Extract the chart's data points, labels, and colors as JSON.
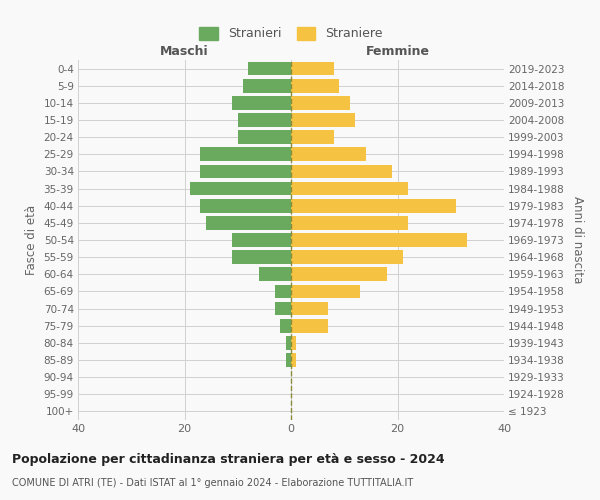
{
  "age_groups": [
    "100+",
    "95-99",
    "90-94",
    "85-89",
    "80-84",
    "75-79",
    "70-74",
    "65-69",
    "60-64",
    "55-59",
    "50-54",
    "45-49",
    "40-44",
    "35-39",
    "30-34",
    "25-29",
    "20-24",
    "15-19",
    "10-14",
    "5-9",
    "0-4"
  ],
  "birth_years": [
    "≤ 1923",
    "1924-1928",
    "1929-1933",
    "1934-1938",
    "1939-1943",
    "1944-1948",
    "1949-1953",
    "1954-1958",
    "1959-1963",
    "1964-1968",
    "1969-1973",
    "1974-1978",
    "1979-1983",
    "1984-1988",
    "1989-1993",
    "1994-1998",
    "1999-2003",
    "2004-2008",
    "2009-2013",
    "2014-2018",
    "2019-2023"
  ],
  "maschi": [
    0,
    0,
    0,
    1,
    1,
    2,
    3,
    3,
    6,
    11,
    11,
    16,
    17,
    19,
    17,
    17,
    10,
    10,
    11,
    9,
    8
  ],
  "femmine": [
    0,
    0,
    0,
    1,
    1,
    7,
    7,
    13,
    18,
    21,
    33,
    22,
    31,
    22,
    19,
    14,
    8,
    12,
    11,
    9,
    8
  ],
  "maschi_color": "#6aaa5e",
  "femmine_color": "#f5c242",
  "bg_color": "#f9f9f9",
  "grid_color": "#d0d0d0",
  "title": "Popolazione per cittadinanza straniera per età e sesso - 2024",
  "subtitle": "COMUNE DI ATRI (TE) - Dati ISTAT al 1° gennaio 2024 - Elaborazione TUTTITALIA.IT",
  "left_label": "Maschi",
  "right_label": "Femmine",
  "ylabel_left": "Fasce di età",
  "ylabel_right": "Anni di nascita",
  "legend_maschi": "Stranieri",
  "legend_femmine": "Straniere",
  "xlim": 40,
  "dashed_line_color": "#8b8b3a"
}
